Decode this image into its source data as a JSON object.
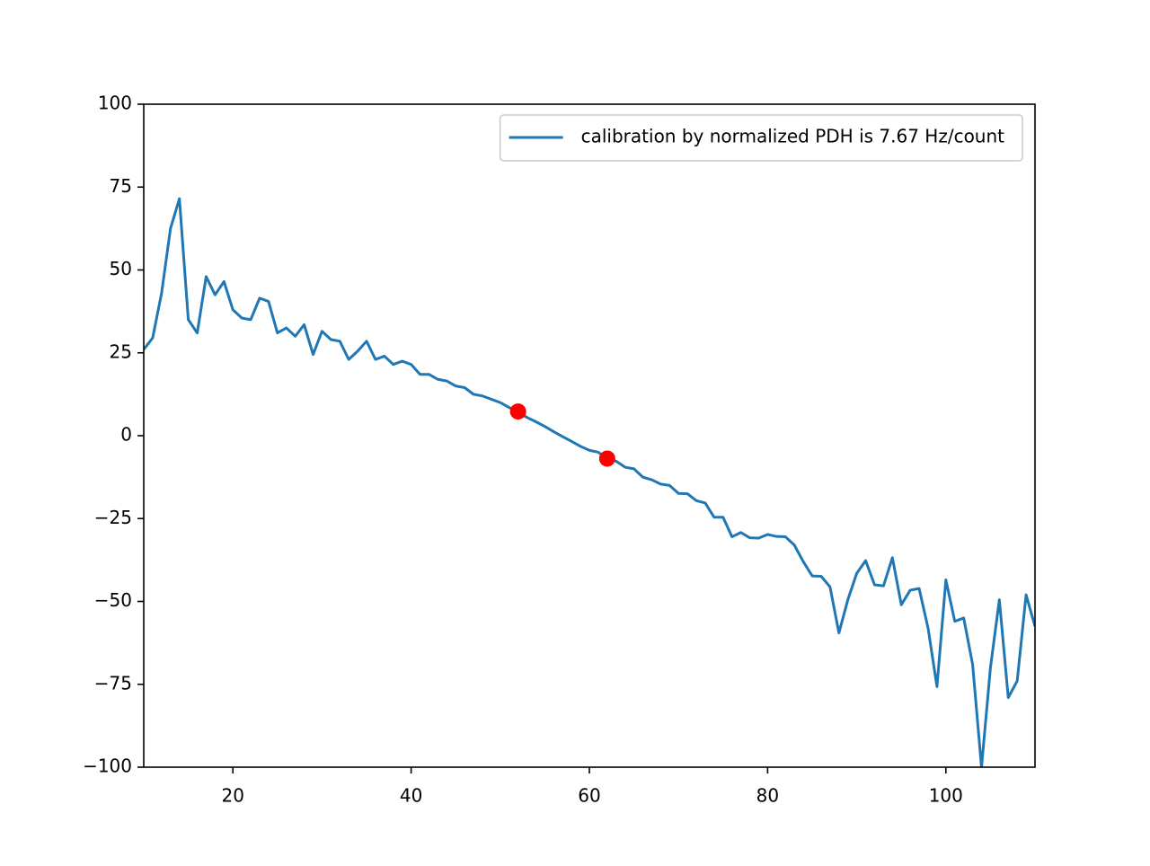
{
  "chart_data": {
    "type": "line",
    "x": [
      10,
      11,
      12,
      13,
      14,
      15,
      16,
      17,
      18,
      19,
      20,
      21,
      22,
      23,
      24,
      25,
      26,
      27,
      28,
      29,
      30,
      31,
      32,
      33,
      34,
      35,
      36,
      37,
      38,
      39,
      40,
      41,
      42,
      43,
      44,
      45,
      46,
      47,
      48,
      49,
      50,
      51,
      52,
      53,
      54,
      55,
      56,
      57,
      58,
      59,
      60,
      61,
      62,
      63,
      64,
      65,
      66,
      67,
      68,
      69,
      70,
      71,
      72,
      73,
      74,
      75,
      76,
      77,
      78,
      79,
      80,
      81,
      82,
      83,
      84,
      85,
      86,
      87,
      88,
      89,
      90,
      91,
      92,
      93,
      94,
      95,
      96,
      97,
      98,
      99,
      100,
      101,
      102,
      103,
      104,
      105,
      106,
      107,
      108,
      109,
      110
    ],
    "series": [
      {
        "name": "calibration by normalized PDH is 7.67 Hz/count",
        "color": "#1f77b4",
        "values": [
          26,
          29.5,
          43,
          62.5,
          71.5,
          35,
          31,
          48,
          42.5,
          46.5,
          38,
          35.5,
          35,
          41.5,
          40.5,
          31,
          32.5,
          30,
          33.5,
          24.5,
          31.5,
          29,
          28.5,
          23,
          25.5,
          28.5,
          23,
          24,
          21.5,
          22.5,
          21.5,
          18.5,
          18.5,
          17,
          16.5,
          15,
          14.5,
          12.5,
          12,
          11,
          10,
          8.5,
          7.2,
          5.5,
          4.2,
          2.8,
          1.2,
          -0.3,
          -1.7,
          -3.2,
          -4.4,
          -5,
          -6.8,
          -7.7,
          -9.5,
          -10,
          -12.5,
          -13.3,
          -14.6,
          -15,
          -17.4,
          -17.5,
          -19.6,
          -20.3,
          -24.6,
          -24.6,
          -30.5,
          -29.2,
          -30.8,
          -30.9,
          -29.8,
          -30.4,
          -30.5,
          -33,
          -38,
          -42.3,
          -42.4,
          -45.6,
          -59.5,
          -49.5,
          -41.5,
          -37.7,
          -45,
          -45.3,
          -36.8,
          -51,
          -46.6,
          -46.1,
          -58,
          -75.7,
          -43.5,
          -56,
          -55,
          -69,
          -100,
          -70,
          -49.5,
          -79,
          -74,
          -48,
          -57.5
        ]
      }
    ],
    "points": {
      "x": [
        52,
        62
      ],
      "values": [
        7.3,
        -6.9
      ],
      "color": "#ff0000"
    },
    "xlim": [
      10,
      110
    ],
    "ylim": [
      -100,
      100
    ],
    "xticks": [
      20,
      40,
      60,
      80,
      100
    ],
    "yticks": [
      {
        "value": -100,
        "label": "−100"
      },
      {
        "value": -75,
        "label": "−75"
      },
      {
        "value": -50,
        "label": "−50"
      },
      {
        "value": -25,
        "label": "−25"
      },
      0,
      25,
      50,
      75,
      100
    ],
    "legend": "upper right",
    "grid": false
  }
}
